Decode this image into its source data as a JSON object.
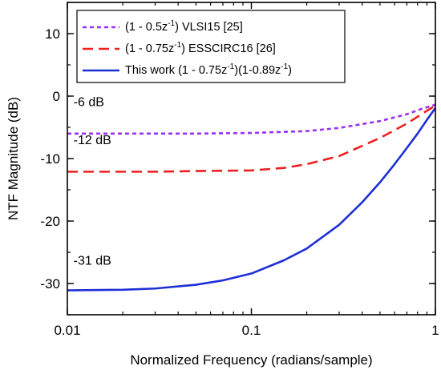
{
  "chart_data": {
    "type": "line",
    "xlabel": "Normalized Frequency (radians/sample)",
    "ylabel": "NTF Magnitude (dB)",
    "xscale": "log",
    "xlim": [
      0.01,
      1
    ],
    "ylim": [
      -35,
      15
    ],
    "xticks": [
      {
        "value": 0.01,
        "label": "0.01"
      },
      {
        "value": 0.1,
        "label": "0.1"
      },
      {
        "value": 1,
        "label": "1"
      }
    ],
    "yticks": [
      {
        "value": 10,
        "label": "10"
      },
      {
        "value": 0,
        "label": "0"
      },
      {
        "value": -10,
        "label": "-10"
      },
      {
        "value": -20,
        "label": "-20"
      },
      {
        "value": -30,
        "label": "-30"
      }
    ],
    "grid": false,
    "legend_position": "top-left",
    "series": [
      {
        "legend": {
          "pre": "(1 - 0.5z",
          "sup": "-1",
          "post": ") VLSI15 [25]"
        },
        "color": "#9a30f0",
        "dash": "short-dash",
        "x": [
          0.01,
          0.03,
          0.05,
          0.1,
          0.2,
          0.3,
          0.5,
          0.7,
          0.85,
          1
        ],
        "y": [
          -6.0,
          -6.0,
          -6.0,
          -5.9,
          -5.6,
          -5.1,
          -4.0,
          -2.9,
          -2.0,
          -1.4
        ]
      },
      {
        "legend": {
          "pre": "(1 - 0.75z",
          "sup": "-1",
          "post": ") ESSCIRC16 [26]"
        },
        "color": "#ee1f1f",
        "dash": "long-dash",
        "x": [
          0.01,
          0.03,
          0.05,
          0.1,
          0.15,
          0.2,
          0.3,
          0.5,
          0.7,
          0.85,
          1
        ],
        "y": [
          -12.1,
          -12.1,
          -12.0,
          -11.9,
          -11.5,
          -10.9,
          -9.6,
          -6.7,
          -4.4,
          -2.8,
          -1.5
        ]
      },
      {
        "legend": {
          "pre": "This work (1 - 0.75z",
          "sup": "-1",
          "post": ")(1-0.89z",
          "sup2": "-1",
          "post2": ")"
        },
        "color": "#1f2fd6",
        "dash": "solid",
        "x": [
          0.01,
          0.02,
          0.03,
          0.05,
          0.07,
          0.1,
          0.15,
          0.2,
          0.3,
          0.4,
          0.5,
          0.6,
          0.7,
          0.8,
          0.9,
          1
        ],
        "y": [
          -31.1,
          -31.0,
          -30.8,
          -30.2,
          -29.5,
          -28.4,
          -26.3,
          -24.4,
          -20.6,
          -17.0,
          -13.8,
          -10.9,
          -8.3,
          -6.0,
          -3.8,
          -1.9
        ]
      }
    ],
    "annotations": [
      {
        "text": "-6 dB",
        "x": 0.0108,
        "y": -1.6
      },
      {
        "text": "-12 dB",
        "x": 0.0108,
        "y": -7.7
      },
      {
        "text": "-31 dB",
        "x": 0.0108,
        "y": -27.0
      }
    ]
  }
}
